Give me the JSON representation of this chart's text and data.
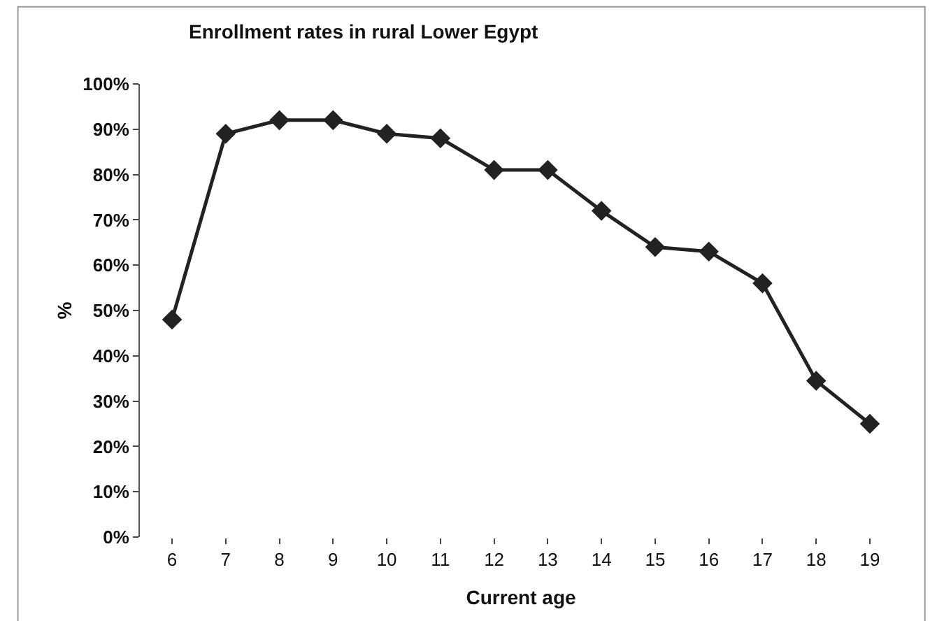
{
  "chart_data": {
    "type": "line",
    "title": "Enrollment rates in rural Lower Egypt",
    "xlabel": "Current age",
    "ylabel": "%",
    "categories": [
      "6",
      "7",
      "8",
      "9",
      "10",
      "11",
      "12",
      "13",
      "14",
      "15",
      "16",
      "17",
      "18",
      "19"
    ],
    "series": [
      {
        "color": "#222222",
        "values": [
          0.48,
          0.89,
          0.92,
          0.92,
          0.89,
          0.88,
          0.81,
          0.81,
          0.72,
          0.64,
          0.63,
          0.56,
          0.345,
          0.25
        ]
      }
    ],
    "ylim": [
      0,
      1
    ],
    "yticks": [
      {
        "value": 0,
        "label": "0%"
      },
      {
        "value": 0.1,
        "label": "10%"
      },
      {
        "value": 0.2,
        "label": "20%"
      },
      {
        "value": 0.3,
        "label": "30%"
      },
      {
        "value": 0.4,
        "label": "40%"
      },
      {
        "value": 0.5,
        "label": "50%"
      },
      {
        "value": 0.6,
        "label": "60%"
      },
      {
        "value": 0.7,
        "label": "70%"
      },
      {
        "value": 0.8,
        "label": "80%"
      },
      {
        "value": 0.9,
        "label": "90%"
      },
      {
        "value": 1,
        "label": "100%"
      }
    ],
    "marker": "diamond",
    "line_style": "solid"
  }
}
